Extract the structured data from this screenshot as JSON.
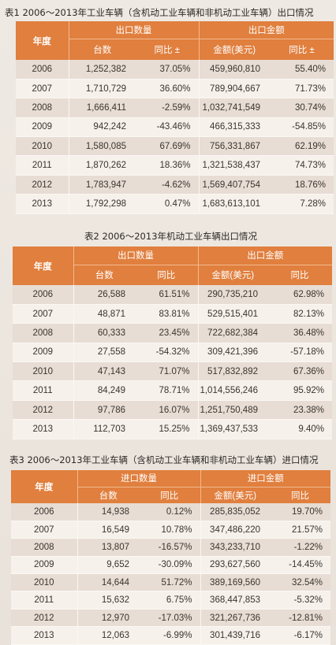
{
  "tables": [
    {
      "title": "表1  2006～2013年工业车辆（含机动工业车辆和非机动工业车辆）出口情况",
      "year_header": "年度",
      "group1": "出口数量",
      "group2": "出口金额",
      "col_qty": "台数",
      "col_qty_yoy": "同比 ±",
      "col_amt": "金额(美元)",
      "col_amt_yoy": "同比 ±",
      "rows": [
        {
          "year": "2006",
          "qty": "1,252,382",
          "qty_yoy": "37.05%",
          "amt": "459,960,810",
          "amt_yoy": "55.40%"
        },
        {
          "year": "2007",
          "qty": "1,710,729",
          "qty_yoy": "36.60%",
          "amt": "789,904,667",
          "amt_yoy": "71.73%"
        },
        {
          "year": "2008",
          "qty": "1,666,411",
          "qty_yoy": "-2.59%",
          "amt": "1,032,741,549",
          "amt_yoy": "30.74%"
        },
        {
          "year": "2009",
          "qty": "942,242",
          "qty_yoy": "-43.46%",
          "amt": "466,315,333",
          "amt_yoy": "-54.85%"
        },
        {
          "year": "2010",
          "qty": "1,580,085",
          "qty_yoy": "67.69%",
          "amt": "756,331,867",
          "amt_yoy": "62.19%"
        },
        {
          "year": "2011",
          "qty": "1,870,262",
          "qty_yoy": "18.36%",
          "amt": "1,321,538,437",
          "amt_yoy": "74.73%"
        },
        {
          "year": "2012",
          "qty": "1,783,947",
          "qty_yoy": "-4.62%",
          "amt": "1,569,407,754",
          "amt_yoy": "18.76%"
        },
        {
          "year": "2013",
          "qty": "1,792,298",
          "qty_yoy": "0.47%",
          "amt": "1,683,613,101",
          "amt_yoy": "7.28%"
        }
      ]
    },
    {
      "title": "表2  2006～2013年机动工业车辆出口情况",
      "year_header": "年度",
      "group1": "出口数量",
      "group2": "出口金额",
      "col_qty": "台数",
      "col_qty_yoy": "同比",
      "col_amt": "金额(美元)",
      "col_amt_yoy": "同比",
      "rows": [
        {
          "year": "2006",
          "qty": "26,588",
          "qty_yoy": "61.51%",
          "amt": "290,735,210",
          "amt_yoy": "62.98%"
        },
        {
          "year": "2007",
          "qty": "48,871",
          "qty_yoy": "83.81%",
          "amt": "529,515,401",
          "amt_yoy": "82.13%"
        },
        {
          "year": "2008",
          "qty": "60,333",
          "qty_yoy": "23.45%",
          "amt": "722,682,384",
          "amt_yoy": "36.48%"
        },
        {
          "year": "2009",
          "qty": "27,558",
          "qty_yoy": "-54.32%",
          "amt": "309,421,396",
          "amt_yoy": "-57.18%"
        },
        {
          "year": "2010",
          "qty": "47,143",
          "qty_yoy": "71.07%",
          "amt": "517,832,892",
          "amt_yoy": "67.36%"
        },
        {
          "year": "2011",
          "qty": "84,249",
          "qty_yoy": "78.71%",
          "amt": "1,014,556,246",
          "amt_yoy": "95.92%"
        },
        {
          "year": "2012",
          "qty": "97,786",
          "qty_yoy": "16.07%",
          "amt": "1,251,750,489",
          "amt_yoy": "23.38%"
        },
        {
          "year": "2013",
          "qty": "112,703",
          "qty_yoy": "15.25%",
          "amt": "1,369,437,533",
          "amt_yoy": "9.40%"
        }
      ]
    },
    {
      "title": "表3  2006～2013年工业车辆（含机动工业车辆和非机动工业车辆）进口情况",
      "year_header": "年度",
      "group1": "进口数量",
      "group2": "进口金额",
      "col_qty": "台数",
      "col_qty_yoy": "同比",
      "col_amt": "金额(美元)",
      "col_amt_yoy": "同比",
      "rows": [
        {
          "year": "2006",
          "qty": "14,938",
          "qty_yoy": "0.12%",
          "amt": "285,835,052",
          "amt_yoy": "19.70%"
        },
        {
          "year": "2007",
          "qty": "16,549",
          "qty_yoy": "10.78%",
          "amt": "347,486,220",
          "amt_yoy": "21.57%"
        },
        {
          "year": "2008",
          "qty": "13,807",
          "qty_yoy": "-16.57%",
          "amt": "343,233,710",
          "amt_yoy": "-1.22%"
        },
        {
          "year": "2009",
          "qty": "9,652",
          "qty_yoy": "-30.09%",
          "amt": "293,627,560",
          "amt_yoy": "-14.45%"
        },
        {
          "year": "2010",
          "qty": "14,644",
          "qty_yoy": "51.72%",
          "amt": "389,169,560",
          "amt_yoy": "32.54%"
        },
        {
          "year": "2011",
          "qty": "15,632",
          "qty_yoy": "6.75%",
          "amt": "368,447,853",
          "amt_yoy": "-5.32%"
        },
        {
          "year": "2012",
          "qty": "12,970",
          "qty_yoy": "-17.03%",
          "amt": "321,267,736",
          "amt_yoy": "-12.81%"
        },
        {
          "year": "2013",
          "qty": "12,063",
          "qty_yoy": "-6.99%",
          "amt": "301,439,716",
          "amt_yoy": "-6.17%"
        }
      ]
    }
  ],
  "colors": {
    "header_orange": "#e07f3e",
    "row_dark": "#e7ddd4",
    "row_light": "#f6f1eb"
  }
}
